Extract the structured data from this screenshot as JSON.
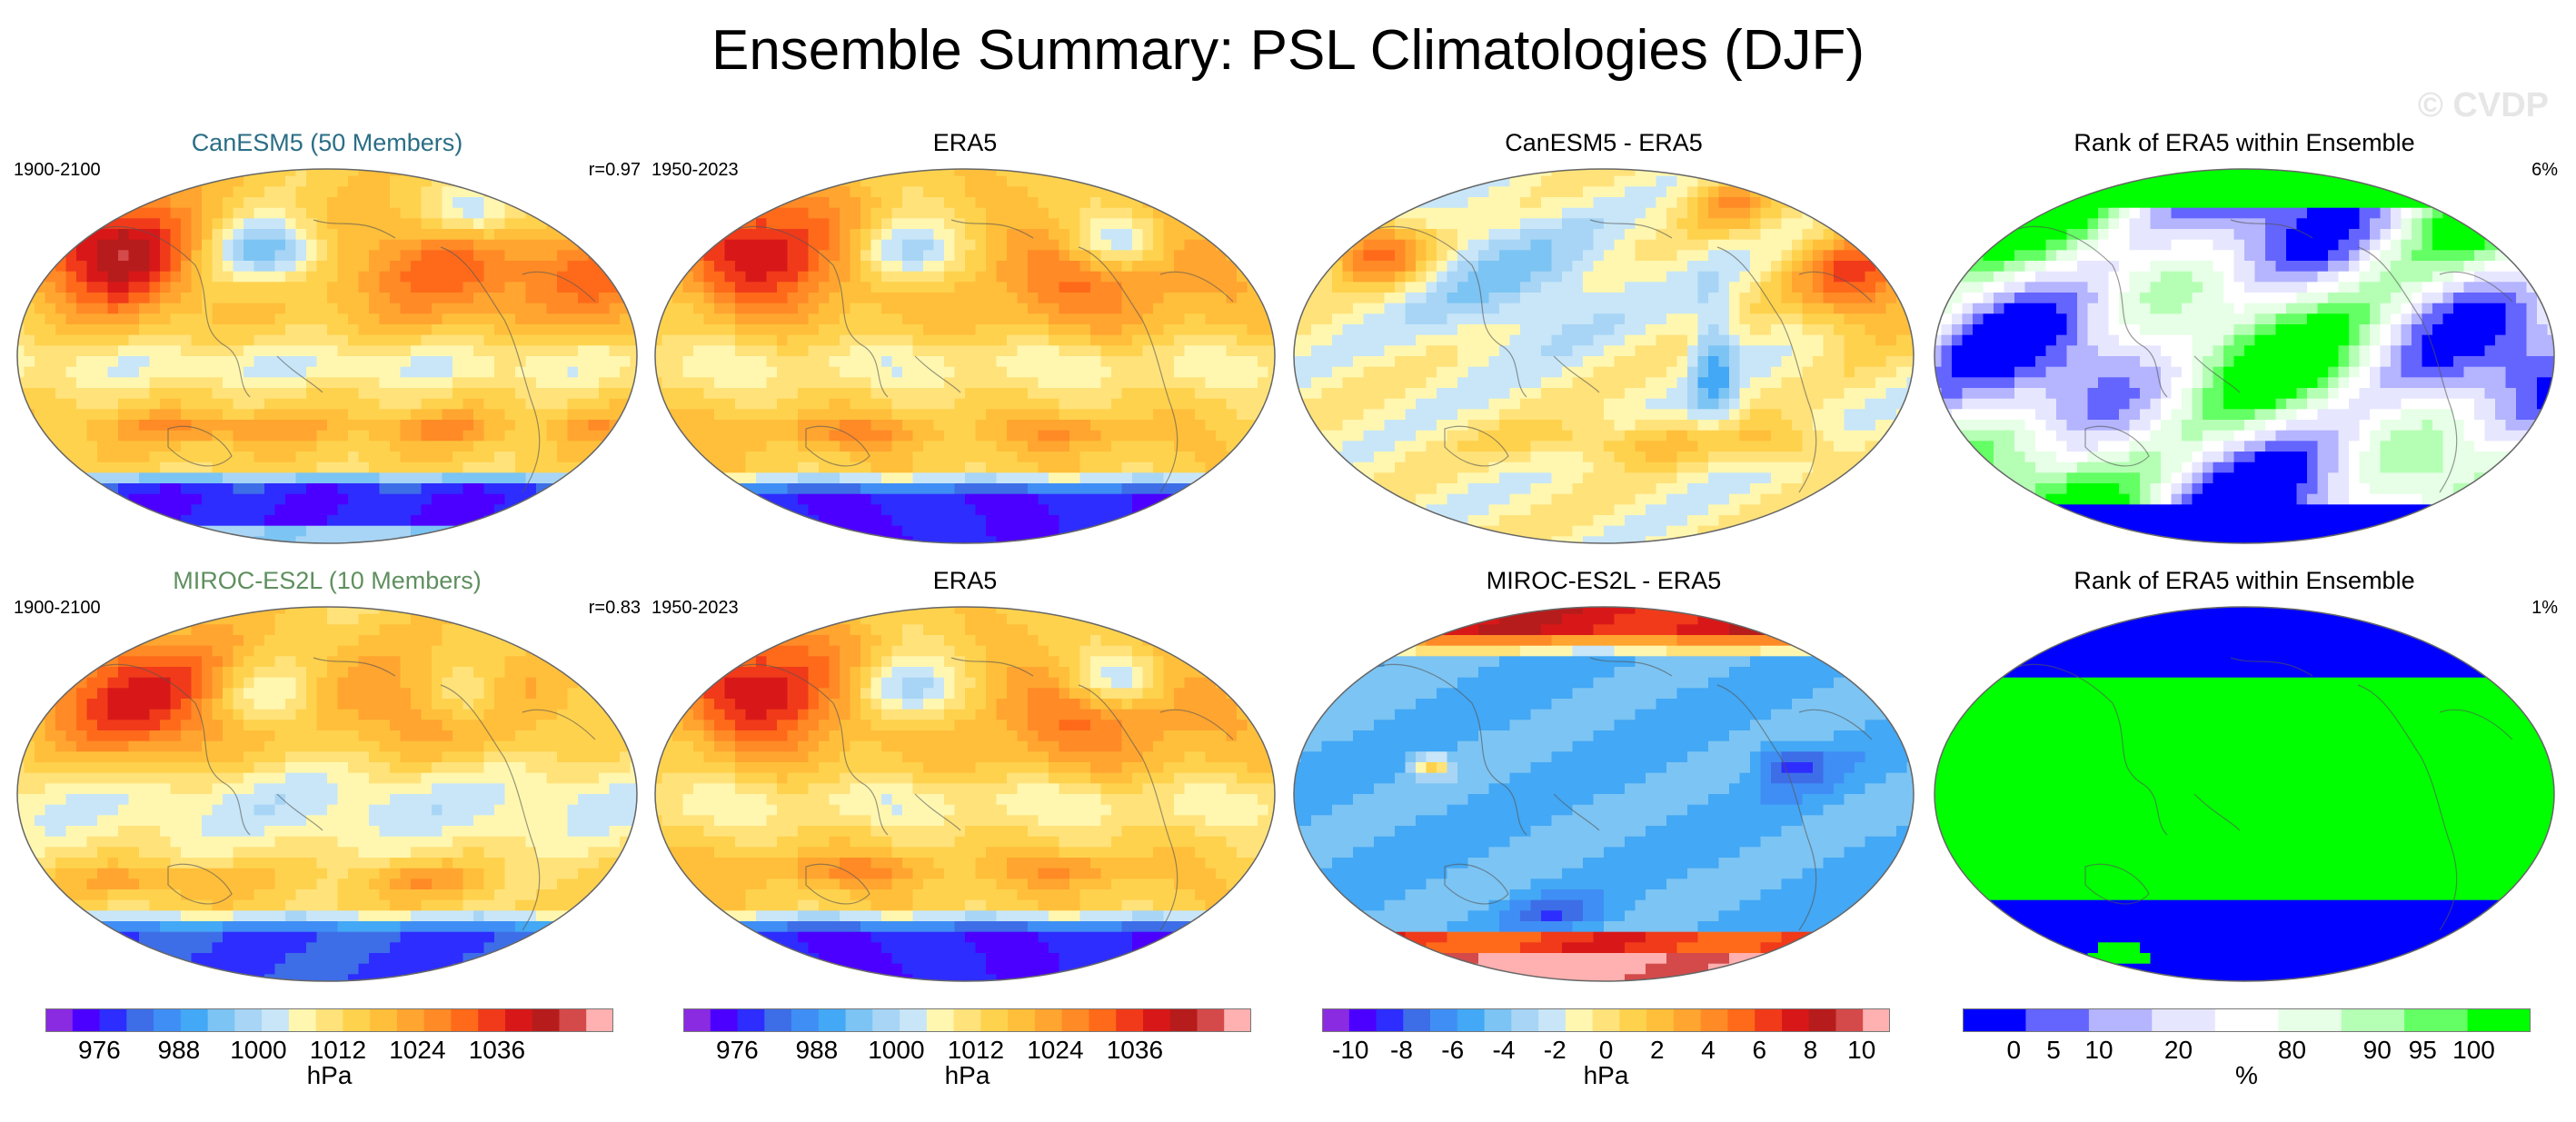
{
  "figure": {
    "title": "Ensemble Summary: PSL Climatologies (DJF)",
    "watermark": "© CVDP"
  },
  "chart_data": [
    {
      "type": "heatmap",
      "title": "CanESM5 (50 Members)",
      "title_color": "#2a6e86",
      "left_label": "1900-2100",
      "right_label": "r=0.97",
      "field": "psl_model_a",
      "unit": "hPa"
    },
    {
      "type": "heatmap",
      "title": "ERA5",
      "title_color": "#000000",
      "left_label": "1950-2023",
      "right_label": "",
      "field": "psl_obs",
      "unit": "hPa"
    },
    {
      "type": "heatmap",
      "title": "CanESM5 - ERA5",
      "title_color": "#000000",
      "left_label": "",
      "right_label": "",
      "field": "diff_a",
      "unit": "hPa"
    },
    {
      "type": "heatmap",
      "title": "Rank of ERA5 within Ensemble",
      "title_color": "#000000",
      "left_label": "",
      "right_label": "6%",
      "field": "rank_a",
      "unit": "%"
    },
    {
      "type": "heatmap",
      "title": "MIROC-ES2L (10 Members)",
      "title_color": "#5f8f5f",
      "left_label": "1900-2100",
      "right_label": "r=0.83",
      "field": "psl_model_b",
      "unit": "hPa"
    },
    {
      "type": "heatmap",
      "title": "ERA5",
      "title_color": "#000000",
      "left_label": "1950-2023",
      "right_label": "",
      "field": "psl_obs",
      "unit": "hPa"
    },
    {
      "type": "heatmap",
      "title": "MIROC-ES2L - ERA5",
      "title_color": "#000000",
      "left_label": "",
      "right_label": "",
      "field": "diff_b",
      "unit": "hPa"
    },
    {
      "type": "heatmap",
      "title": "Rank of ERA5 within Ensemble",
      "title_color": "#000000",
      "left_label": "",
      "right_label": "1%",
      "field": "rank_b",
      "unit": "%"
    }
  ],
  "colorbars": [
    {
      "name": "psl-model",
      "unit": "hPa",
      "ticks": [
        "976",
        "988",
        "1000",
        "1012",
        "1024",
        "1036"
      ],
      "colors": [
        "#8a2be2",
        "#4b00ff",
        "#2d2dff",
        "#3d6ee8",
        "#3f8ef5",
        "#43a8f5",
        "#7cc4f3",
        "#a8d5f5",
        "#c8e6f8",
        "#fff7b0",
        "#ffe27a",
        "#ffd24d",
        "#ffbf3a",
        "#ffa530",
        "#ff8a26",
        "#ff6a1a",
        "#f03a1a",
        "#d81818",
        "#b71c1c",
        "#d44a4a",
        "#ffb0b0"
      ]
    },
    {
      "name": "psl-obs",
      "unit": "hPa",
      "ticks": [
        "976",
        "988",
        "1000",
        "1012",
        "1024",
        "1036"
      ],
      "colors": [
        "#8a2be2",
        "#4b00ff",
        "#2d2dff",
        "#3d6ee8",
        "#3f8ef5",
        "#43a8f5",
        "#7cc4f3",
        "#a8d5f5",
        "#c8e6f8",
        "#fff7b0",
        "#ffe27a",
        "#ffd24d",
        "#ffbf3a",
        "#ffa530",
        "#ff8a26",
        "#ff6a1a",
        "#f03a1a",
        "#d81818",
        "#b71c1c",
        "#d44a4a",
        "#ffb0b0"
      ]
    },
    {
      "name": "diff",
      "unit": "hPa",
      "ticks": [
        "-10",
        "-8",
        "-6",
        "-4",
        "-2",
        "0",
        "2",
        "4",
        "6",
        "8",
        "10"
      ],
      "colors": [
        "#8a2be2",
        "#4b00ff",
        "#2d2dff",
        "#3d6ee8",
        "#3f8ef5",
        "#43a8f5",
        "#7cc4f3",
        "#a8d5f5",
        "#c8e6f8",
        "#fff7b0",
        "#ffe27a",
        "#ffd24d",
        "#ffbf3a",
        "#ffa530",
        "#ff8a26",
        "#ff6a1a",
        "#f03a1a",
        "#d81818",
        "#b71c1c",
        "#d44a4a",
        "#ffb0b0"
      ]
    },
    {
      "name": "rank",
      "unit": "%",
      "ticks": [
        "0",
        "5",
        "10",
        "20",
        "80",
        "90",
        "95",
        "100"
      ],
      "colors": [
        "#0000ff",
        "#6464ff",
        "#b4b4ff",
        "#e6e6ff",
        "#ffffff",
        "#e6ffe6",
        "#b4ffb4",
        "#64ff64",
        "#00ff00"
      ]
    }
  ]
}
